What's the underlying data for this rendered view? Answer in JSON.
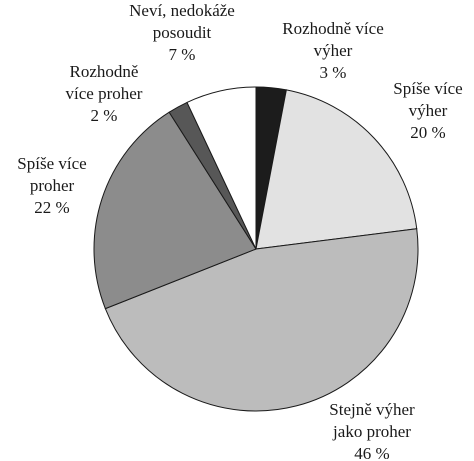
{
  "chart_data": {
    "type": "pie",
    "categories": [
      [
        "Rozhodně více",
        "výher"
      ],
      [
        "Spíše více",
        "výher"
      ],
      [
        "Stejně výher",
        "jako proher"
      ],
      [
        "Spíše více",
        "proher"
      ],
      [
        "Rozhodně",
        "více proher"
      ],
      [
        "Neví, nedokáže",
        "posoudit"
      ]
    ],
    "values": [
      3,
      20,
      46,
      22,
      2,
      7
    ],
    "value_labels": [
      "3 %",
      "20 %",
      "46 %",
      "22 %",
      "2 %",
      "7 %"
    ],
    "colors": [
      "#1c1c1c",
      "#e2e2e2",
      "#bcbcbc",
      "#8c8c8c",
      "#575757",
      "#ffffff"
    ]
  }
}
